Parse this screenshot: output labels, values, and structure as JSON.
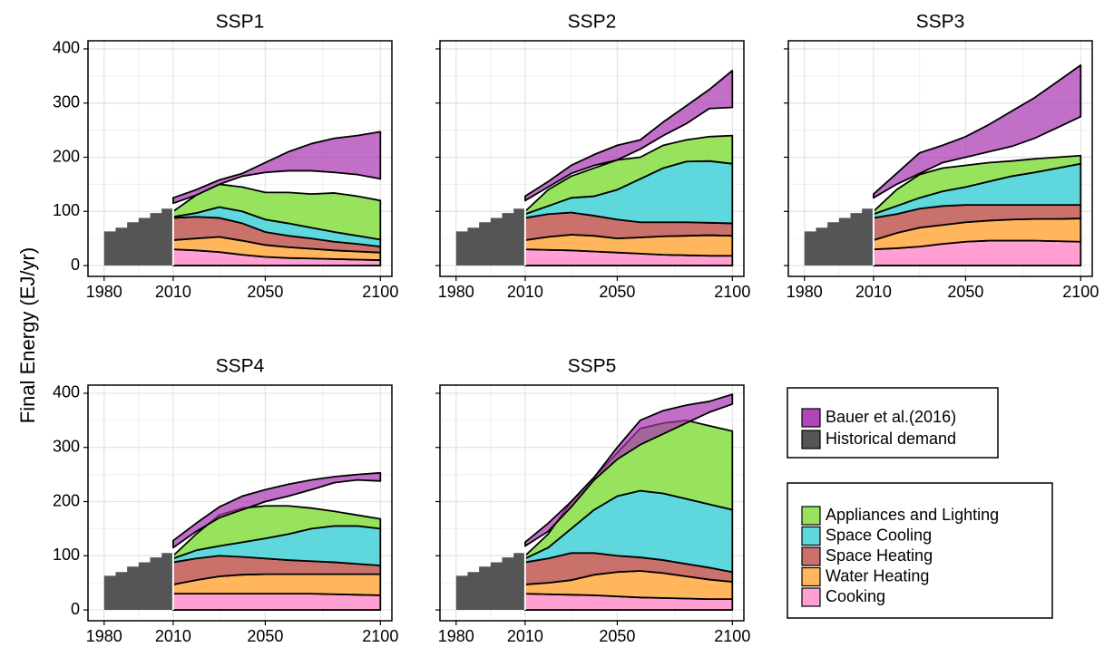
{
  "chart_data": {
    "type": "stacked-area-facets",
    "ylabel": "Final Energy (EJ/yr)",
    "xlim": [
      1973,
      2105
    ],
    "xticks": [
      1980,
      2010,
      2050,
      2100
    ],
    "ylim": [
      -20,
      415
    ],
    "yticks": [
      0,
      100,
      200,
      300,
      400
    ],
    "x": [
      2010,
      2020,
      2030,
      2040,
      2050,
      2060,
      2070,
      2080,
      2090,
      2100
    ],
    "hist_x": [
      1980,
      1985,
      1990,
      1995,
      2000,
      2005,
      2010
    ],
    "bands": [
      {
        "name": "Bauer et al.(2016)",
        "color": "#a832b0"
      },
      {
        "name": "Historical demand",
        "color": "#555555"
      }
    ],
    "series": [
      {
        "name": "Appliances and Lighting",
        "color": "#98e35e"
      },
      {
        "name": "Space Cooling",
        "color": "#5fd8dd"
      },
      {
        "name": "Space Heating",
        "color": "#c9716b"
      },
      {
        "name": "Water Heating",
        "color": "#ffb65c"
      },
      {
        "name": "Cooking",
        "color": "#ff9fd2"
      }
    ],
    "panels": [
      {
        "title": "SSP1",
        "history": [
          63,
          70,
          80,
          88,
          97,
          105,
          113
        ],
        "bauer_low": [
          115,
          130,
          150,
          165,
          172,
          175,
          175,
          172,
          168,
          160
        ],
        "bauer_high": [
          125,
          140,
          158,
          170,
          190,
          210,
          225,
          235,
          240,
          247
        ],
        "values": [
          [
            10,
            33,
            42,
            45,
            50,
            57,
            62,
            72,
            73,
            72
          ],
          [
            2,
            7,
            20,
            22,
            23,
            23,
            20,
            18,
            15,
            13
          ],
          [
            41,
            40,
            35,
            32,
            24,
            21,
            19,
            16,
            14,
            11
          ],
          [
            17,
            22,
            28,
            26,
            22,
            20,
            18,
            16,
            15,
            14
          ],
          [
            30,
            28,
            25,
            20,
            16,
            14,
            13,
            12,
            11,
            10
          ]
        ]
      },
      {
        "title": "SSP2",
        "history": [
          63,
          70,
          80,
          88,
          97,
          105,
          113
        ],
        "bauer_low": [
          120,
          145,
          170,
          185,
          195,
          215,
          240,
          262,
          290,
          292
        ],
        "bauer_high": [
          128,
          155,
          185,
          205,
          222,
          232,
          265,
          295,
          325,
          360
        ],
        "values": [
          [
            5,
            30,
            40,
            52,
            55,
            40,
            42,
            40,
            45,
            52
          ],
          [
            7,
            15,
            27,
            36,
            55,
            80,
            100,
            112,
            114,
            110
          ],
          [
            41,
            42,
            41,
            37,
            35,
            28,
            26,
            25,
            23,
            23
          ],
          [
            17,
            24,
            29,
            29,
            26,
            30,
            34,
            36,
            38,
            37
          ],
          [
            30,
            29,
            28,
            26,
            24,
            22,
            20,
            19,
            18,
            18
          ]
        ]
      },
      {
        "title": "SSP3",
        "history": [
          63,
          70,
          80,
          88,
          97,
          105,
          113
        ],
        "bauer_low": [
          125,
          150,
          170,
          190,
          200,
          210,
          220,
          235,
          255,
          275
        ],
        "bauer_high": [
          132,
          170,
          208,
          222,
          238,
          260,
          285,
          310,
          340,
          370
        ],
        "values": [
          [
            5,
            30,
            43,
            43,
            40,
            35,
            28,
            25,
            20,
            15
          ],
          [
            7,
            15,
            20,
            27,
            33,
            43,
            53,
            60,
            68,
            76
          ],
          [
            41,
            35,
            35,
            35,
            32,
            29,
            27,
            26,
            26,
            25
          ],
          [
            17,
            28,
            35,
            35,
            36,
            37,
            39,
            40,
            41,
            43
          ],
          [
            30,
            32,
            35,
            40,
            44,
            46,
            46,
            46,
            45,
            44
          ]
        ]
      },
      {
        "title": "SSP4",
        "history": [
          63,
          70,
          80,
          88,
          97,
          105,
          113
        ],
        "bauer_low": [
          115,
          145,
          170,
          185,
          200,
          210,
          222,
          235,
          240,
          238
        ],
        "bauer_high": [
          128,
          160,
          190,
          210,
          222,
          232,
          240,
          246,
          250,
          253
        ],
        "values": [
          [
            5,
            30,
            57,
            63,
            60,
            52,
            38,
            27,
            20,
            18
          ],
          [
            7,
            15,
            18,
            27,
            37,
            48,
            60,
            67,
            70,
            68
          ],
          [
            41,
            40,
            38,
            33,
            29,
            26,
            24,
            22,
            19,
            16
          ],
          [
            17,
            25,
            32,
            35,
            36,
            36,
            36,
            37,
            38,
            39
          ],
          [
            30,
            30,
            30,
            30,
            30,
            30,
            30,
            29,
            28,
            27
          ]
        ]
      },
      {
        "title": "SSP5",
        "history": [
          63,
          70,
          80,
          88,
          97,
          105,
          113
        ],
        "bauer_low": [
          118,
          145,
          190,
          240,
          278,
          305,
          325,
          345,
          365,
          380
        ],
        "bauer_high": [
          125,
          160,
          200,
          245,
          300,
          350,
          368,
          378,
          385,
          398
        ],
        "values": [
          [
            5,
            25,
            50,
            60,
            80,
            115,
            130,
            145,
            145,
            145
          ],
          [
            7,
            20,
            45,
            80,
            110,
            123,
            123,
            120,
            117,
            115
          ],
          [
            41,
            45,
            50,
            40,
            30,
            25,
            24,
            23,
            22,
            18
          ],
          [
            17,
            21,
            27,
            38,
            45,
            49,
            46,
            41,
            36,
            32
          ],
          [
            30,
            29,
            28,
            27,
            25,
            23,
            22,
            21,
            20,
            20
          ]
        ]
      }
    ]
  }
}
